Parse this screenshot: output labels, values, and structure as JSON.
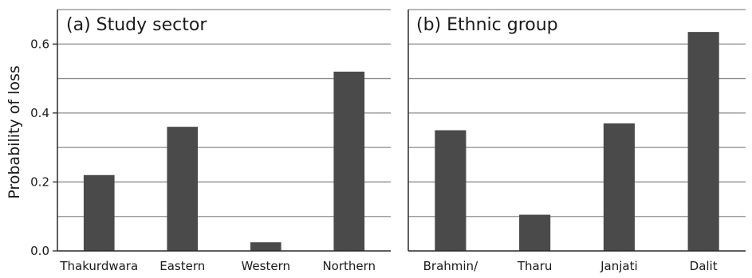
{
  "chart_data": [
    {
      "type": "bar",
      "title": "(a) Study sector",
      "ylabel": "Probability of loss",
      "xlabel": "",
      "categories": [
        "Thakurdwara",
        "Eastern",
        "Western",
        "Northern"
      ],
      "values": [
        0.22,
        0.36,
        0.025,
        0.52
      ],
      "ylim": [
        0,
        0.7
      ],
      "yticks": [
        "0.0",
        "0.2",
        "0.4",
        "0.6"
      ],
      "grid": true,
      "bar_color": "#4a4a4a",
      "grid_color": "#8c8c8c"
    },
    {
      "type": "bar",
      "title": "(b) Ethnic group",
      "ylabel": "",
      "xlabel": "",
      "categories": [
        "Brahmin/",
        "Tharu",
        "Janjati",
        "Dalit"
      ],
      "values": [
        0.35,
        0.105,
        0.37,
        0.635
      ],
      "ylim": [
        0,
        0.7
      ],
      "yticks": [],
      "grid": true,
      "bar_color": "#4a4a4a",
      "grid_color": "#8c8c8c"
    }
  ]
}
